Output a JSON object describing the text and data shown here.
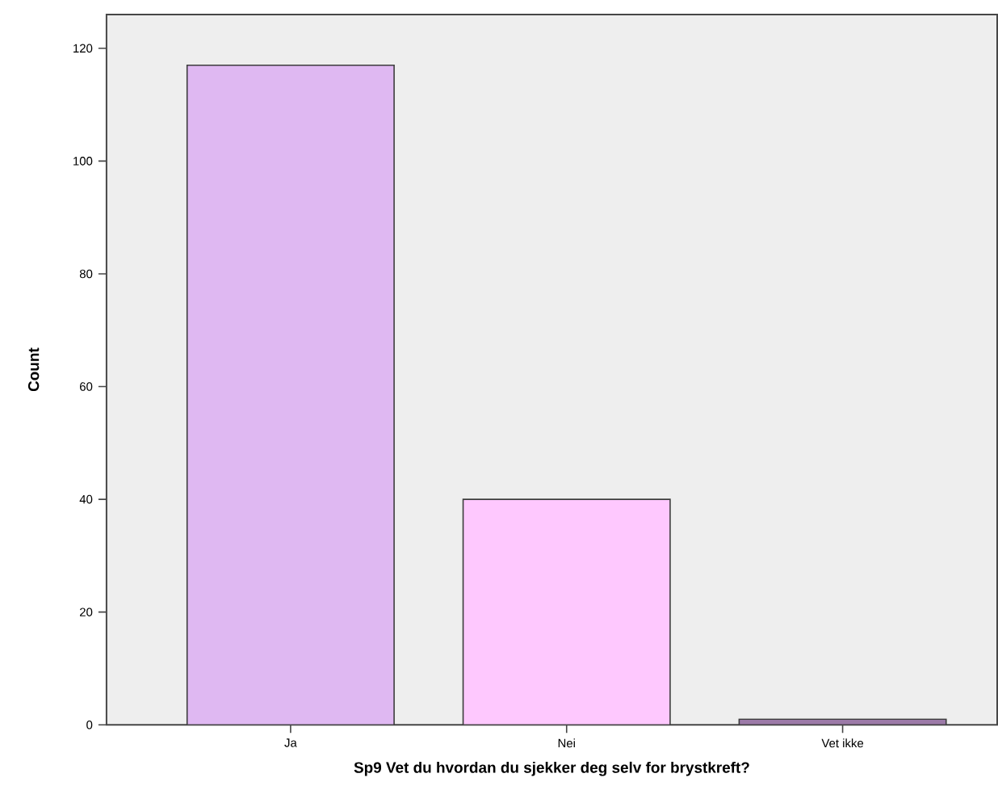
{
  "chart_data": {
    "type": "bar",
    "xlabel": "Sp9 Vet du hvordan du sjekker deg selv for brystkreft?",
    "ylabel": "Count",
    "categories": [
      "Ja",
      "Nei",
      "Vet ikke"
    ],
    "values": [
      117,
      40,
      1
    ],
    "colors": [
      "#dfb8f2",
      "#fec8fe",
      "#9c7aa8"
    ],
    "ylim": [
      0,
      126
    ],
    "yticks": [
      0,
      20,
      40,
      60,
      80,
      100,
      120
    ]
  }
}
